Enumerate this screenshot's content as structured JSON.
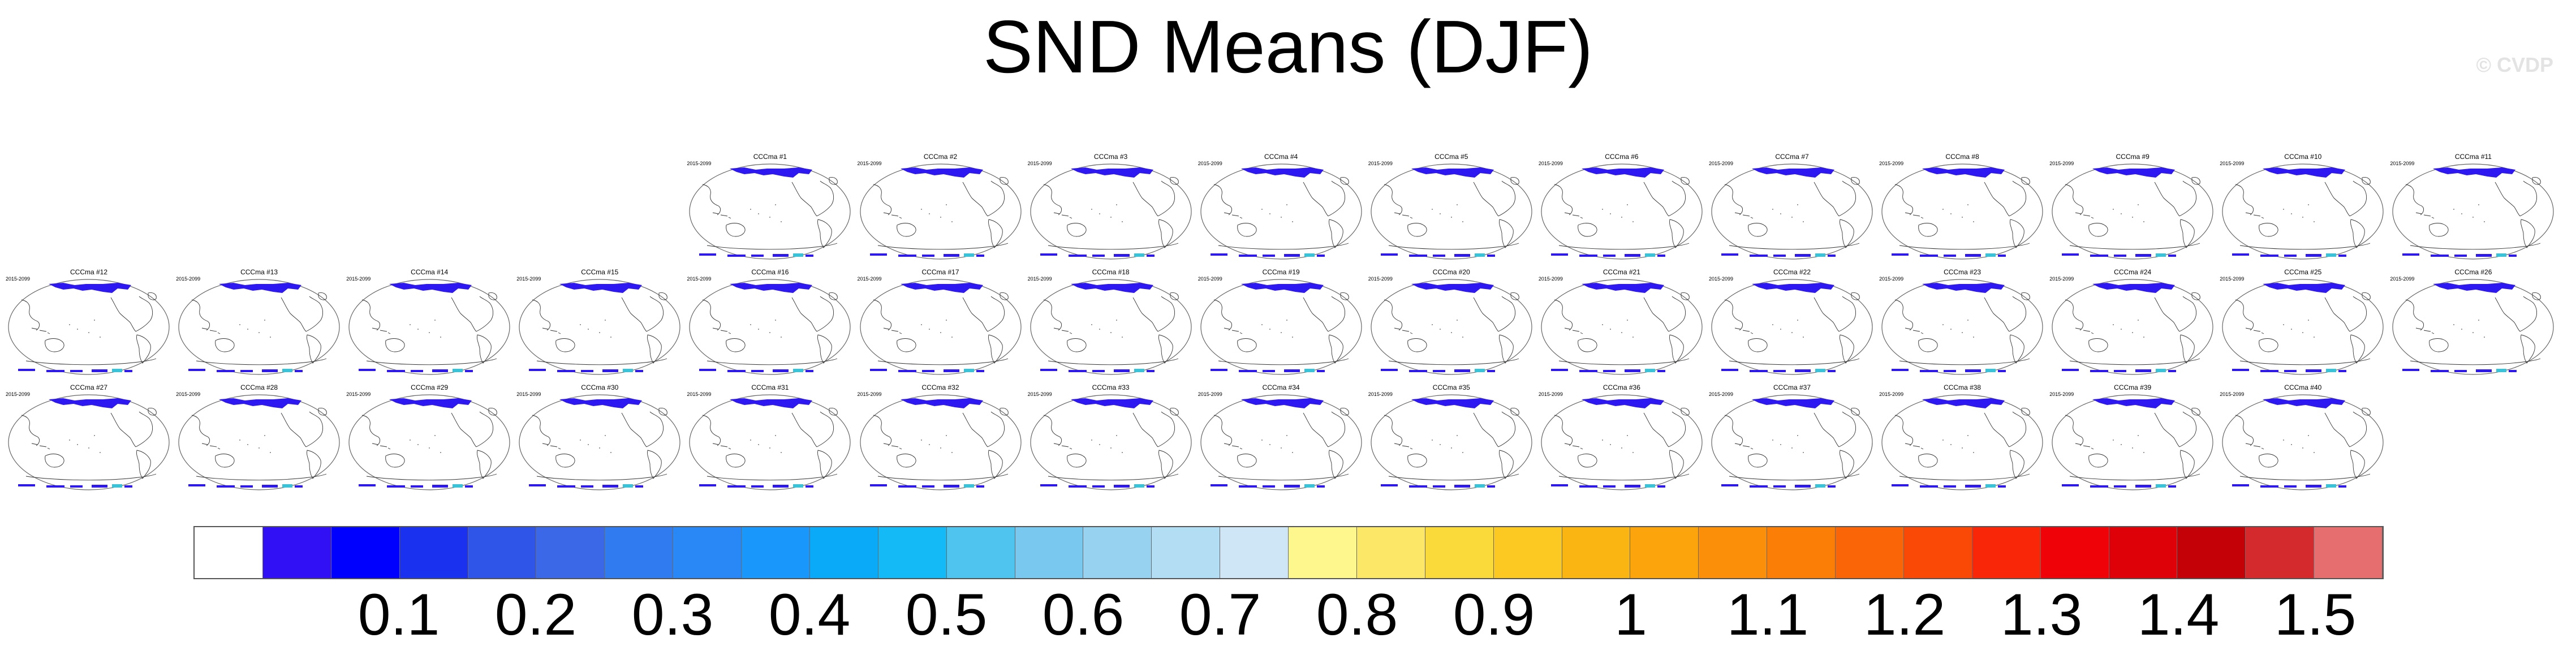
{
  "title": "SND Means (DJF)",
  "watermark": "© CVDP",
  "chart_data": {
    "type": "map-panels",
    "title": "SND Means (DJF)",
    "variable": "SND",
    "season": "DJF",
    "projection": "global map, Pacific-centered",
    "period": "2015-2099",
    "panels": [
      "CCCma #1",
      "CCCma #2",
      "CCCma #3",
      "CCCma #4",
      "CCCma #5",
      "CCCma #6",
      "CCCma #7",
      "CCCma #8",
      "CCCma #9",
      "CCCma #10",
      "CCCma #11",
      "CCCma #12",
      "CCCma #13",
      "CCCma #14",
      "CCCma #15",
      "CCCma #16",
      "CCCma #17",
      "CCCma #18",
      "CCCma #19",
      "CCCma #20",
      "CCCma #21",
      "CCCma #22",
      "CCCma #23",
      "CCCma #24",
      "CCCma #25",
      "CCCma #26",
      "CCCma #27",
      "CCCma #28",
      "CCCma #29",
      "CCCma #30",
      "CCCma #31",
      "CCCma #32",
      "CCCma #33",
      "CCCma #34",
      "CCCma #35",
      "CCCma #36",
      "CCCma #37",
      "CCCma #38",
      "CCCma #39",
      "CCCma #40"
    ],
    "colorbar": {
      "min": 0.0,
      "max": 1.55,
      "step": 0.05,
      "tick_labels": [
        "0.1",
        "0.2",
        "0.3",
        "0.4",
        "0.5",
        "0.6",
        "0.7",
        "0.8",
        "0.9",
        "1",
        "1.1",
        "1.2",
        "1.3",
        "1.4",
        "1.5"
      ],
      "colors": [
        "#ffffff",
        "#3210f5",
        "#0000ff",
        "#1a32f0",
        "#2f55e8",
        "#3a68e6",
        "#2f7bef",
        "#2a88f6",
        "#1a97fb",
        "#0aaaf9",
        "#13baf6",
        "#4fc4ef",
        "#79c8ef",
        "#97d2f1",
        "#b2ddf3",
        "#cfe6f6",
        "#fdf78e",
        "#fde766",
        "#fad93b",
        "#fbc921",
        "#fbb512",
        "#fba40c",
        "#fb8f09",
        "#fb7e06",
        "#fa6607",
        "#fa4806",
        "#f92608",
        "#f00308",
        "#de0108",
        "#c40107",
        "#d42a2d",
        "#e76e6e"
      ]
    },
    "snow_color": "#2e18f2"
  }
}
